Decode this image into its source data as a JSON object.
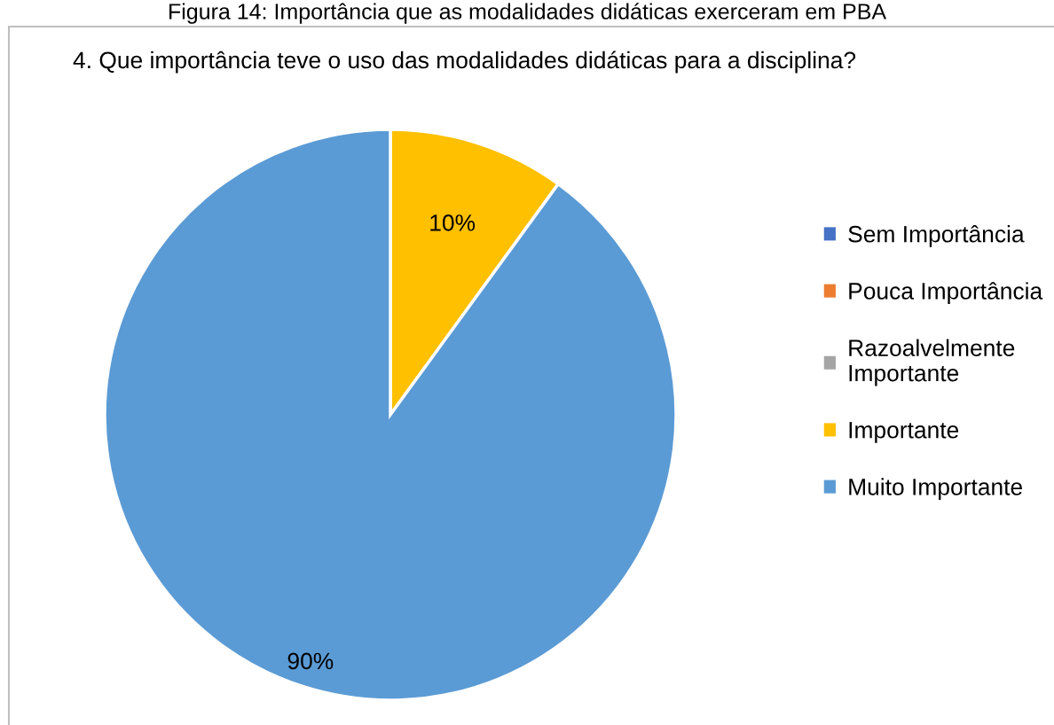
{
  "chart_data": {
    "type": "pie",
    "title": "4. Que importância teve o uso das modalidades didáticas para a disciplina?",
    "annotations": [
      "Figura 14: Importância que as modalidades didáticas exerceram em PBA"
    ],
    "categories": [
      "Sem Importância",
      "Pouca Importância",
      "Razoalvelmente Importante",
      "Importante",
      "Muito Importante"
    ],
    "values": [
      0,
      0,
      0,
      10,
      90
    ],
    "colors": [
      "#4472c4",
      "#ed7d31",
      "#a5a5a5",
      "#ffc000",
      "#5b9bd5"
    ],
    "value_labels": [
      null,
      null,
      null,
      "10%",
      "90%"
    ],
    "legend": "right"
  }
}
